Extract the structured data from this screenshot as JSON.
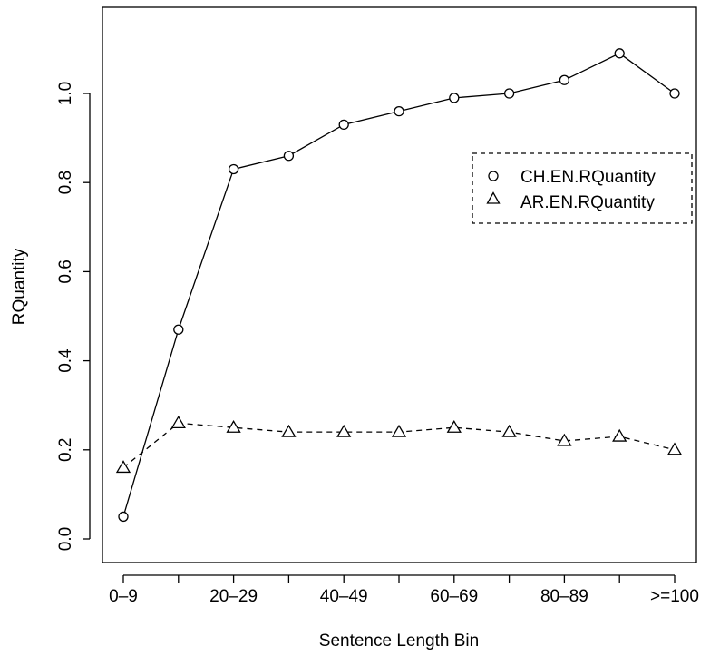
{
  "chart_data": {
    "type": "line",
    "title": "",
    "xlabel": "Sentence Length Bin",
    "ylabel": "RQuantity",
    "x_tick_labels": [
      "0–9",
      "20–29",
      "40–49",
      "60–69",
      "80–89",
      ">=100"
    ],
    "y_ticks": [
      "0.0",
      "0.2",
      "0.4",
      "0.6",
      "0.8",
      "1.0"
    ],
    "ylim": [
      0.0,
      1.0
    ],
    "legend_position": "right, upper-middle",
    "series": [
      {
        "name": "CH.EN.RQuantity",
        "marker": "circle",
        "line_style": "solid",
        "x": [
          1,
          2,
          3,
          4,
          5,
          6,
          7,
          8,
          9,
          10,
          11
        ],
        "values": [
          0.05,
          0.47,
          0.83,
          0.86,
          0.93,
          0.96,
          0.99,
          1.0,
          1.03,
          1.09,
          1.0
        ]
      },
      {
        "name": "AR.EN.RQuantity",
        "marker": "triangle",
        "line_style": "dashed",
        "x": [
          1,
          2,
          3,
          4,
          5,
          6,
          7,
          8,
          9,
          10,
          11
        ],
        "values": [
          0.16,
          0.26,
          0.25,
          0.24,
          0.24,
          0.24,
          0.25,
          0.24,
          0.22,
          0.23,
          0.2
        ]
      }
    ],
    "colors": {
      "line": "#000000",
      "background": "#ffffff"
    }
  }
}
